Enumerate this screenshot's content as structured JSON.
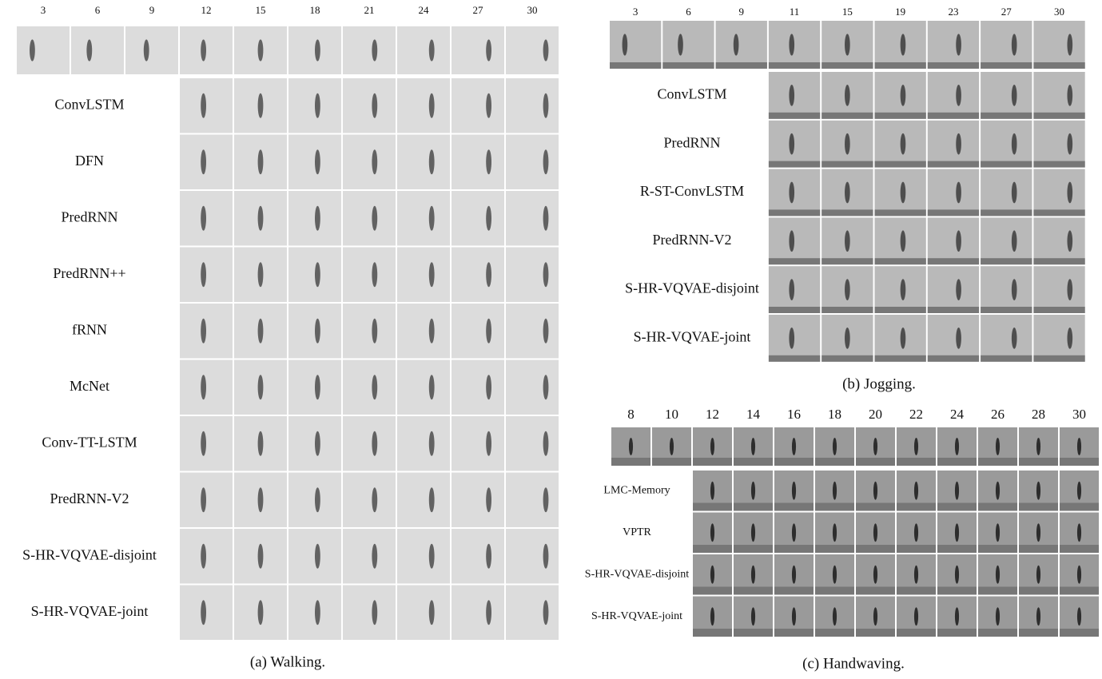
{
  "panels": [
    {
      "caption": "(a) Walking.",
      "frames": [
        "3",
        "6",
        "9",
        "12",
        "15",
        "18",
        "21",
        "24",
        "27",
        "30"
      ],
      "methods": [
        "ConvLSTM",
        "DFN",
        "PredRNN",
        "PredRNN++",
        "fRNN",
        "McNet",
        "Conv-TT-LSTM",
        "PredRNN-V2",
        "S-HR-VQVAE-disjoint",
        "S-HR-VQVAE-joint"
      ]
    },
    {
      "caption": "(b) Jogging.",
      "frames": [
        "3",
        "6",
        "9",
        "11",
        "15",
        "19",
        "23",
        "27",
        "30"
      ],
      "methods": [
        "ConvLSTM",
        "PredRNN",
        "R-ST-ConvLSTM",
        "PredRNN-V2",
        "S-HR-VQVAE-disjoint",
        "S-HR-VQVAE-joint"
      ]
    },
    {
      "caption": "(c) Handwaving.",
      "frames": [
        "8",
        "10",
        "12",
        "14",
        "16",
        "18",
        "20",
        "22",
        "24",
        "26",
        "28",
        "30"
      ],
      "methods": [
        "LMC-Memory",
        "VPTR",
        "S-HR-VQVAE-disjoint",
        "S-HR-VQVAE-joint"
      ]
    }
  ]
}
